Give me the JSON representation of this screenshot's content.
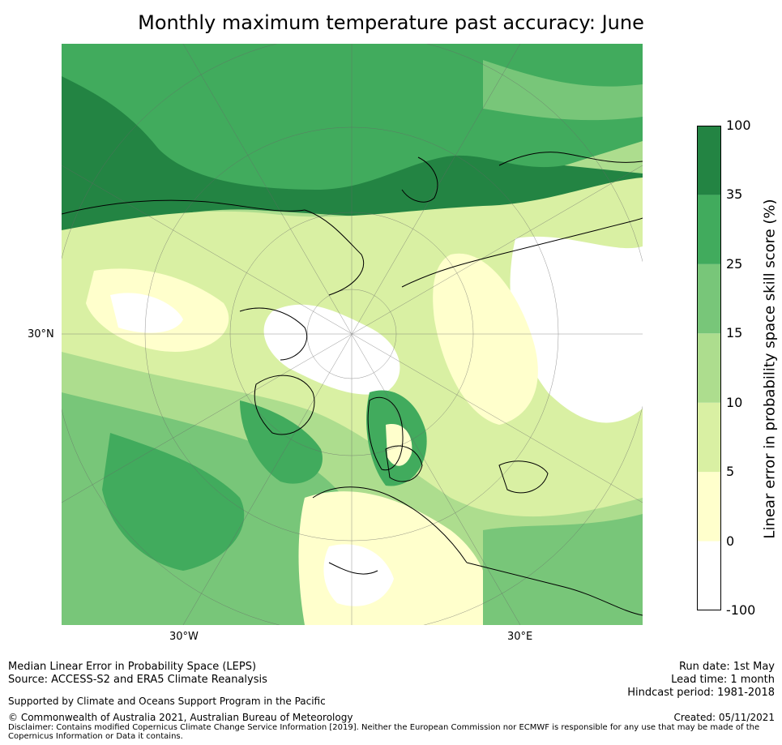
{
  "title": "Monthly maximum temperature past accuracy: June",
  "map": {
    "labels": {
      "lat": "30°N",
      "lon_west": "30°W",
      "lon_east": "30°E"
    },
    "colors": {
      "c0": "#ffffff",
      "c5": "#ffffcc",
      "c10": "#d9f0a3",
      "c15": "#addd8e",
      "c25": "#78c679",
      "c35": "#41ab5d",
      "c100": "#238443"
    }
  },
  "colorbar": {
    "title": "Linear error in probability space skill score (%)",
    "ticks": [
      "100",
      "35",
      "25",
      "15",
      "10",
      "5",
      "0",
      "-100"
    ],
    "colors": [
      "#ffffff",
      "#ffffcc",
      "#d9f0a3",
      "#addd8e",
      "#78c679",
      "#41ab5d",
      "#238443"
    ]
  },
  "footer": {
    "left1": "Median Linear Error in Probability Space (LEPS)",
    "left2": "Source: ACCESS-S2 and ERA5 Climate Reanalysis",
    "support": "Supported by Climate and Oceans Support Program in the Pacific",
    "copyright": "© Commonwealth of Australia 2021, Australian Bureau of Meteorology",
    "disclaimer": "Disclaimer: Contains modified Copernicus Climate Change Service Information [2019]. Neither the European Commission nor ECMWF is responsible for any use that may be made of the Copernicus Information or Data it contains.",
    "run_date": "Run date: 1st May",
    "lead_time": "Lead time: 1 month",
    "hindcast": "Hindcast period: 1981-2018",
    "created": "Created: 05/11/2021"
  }
}
